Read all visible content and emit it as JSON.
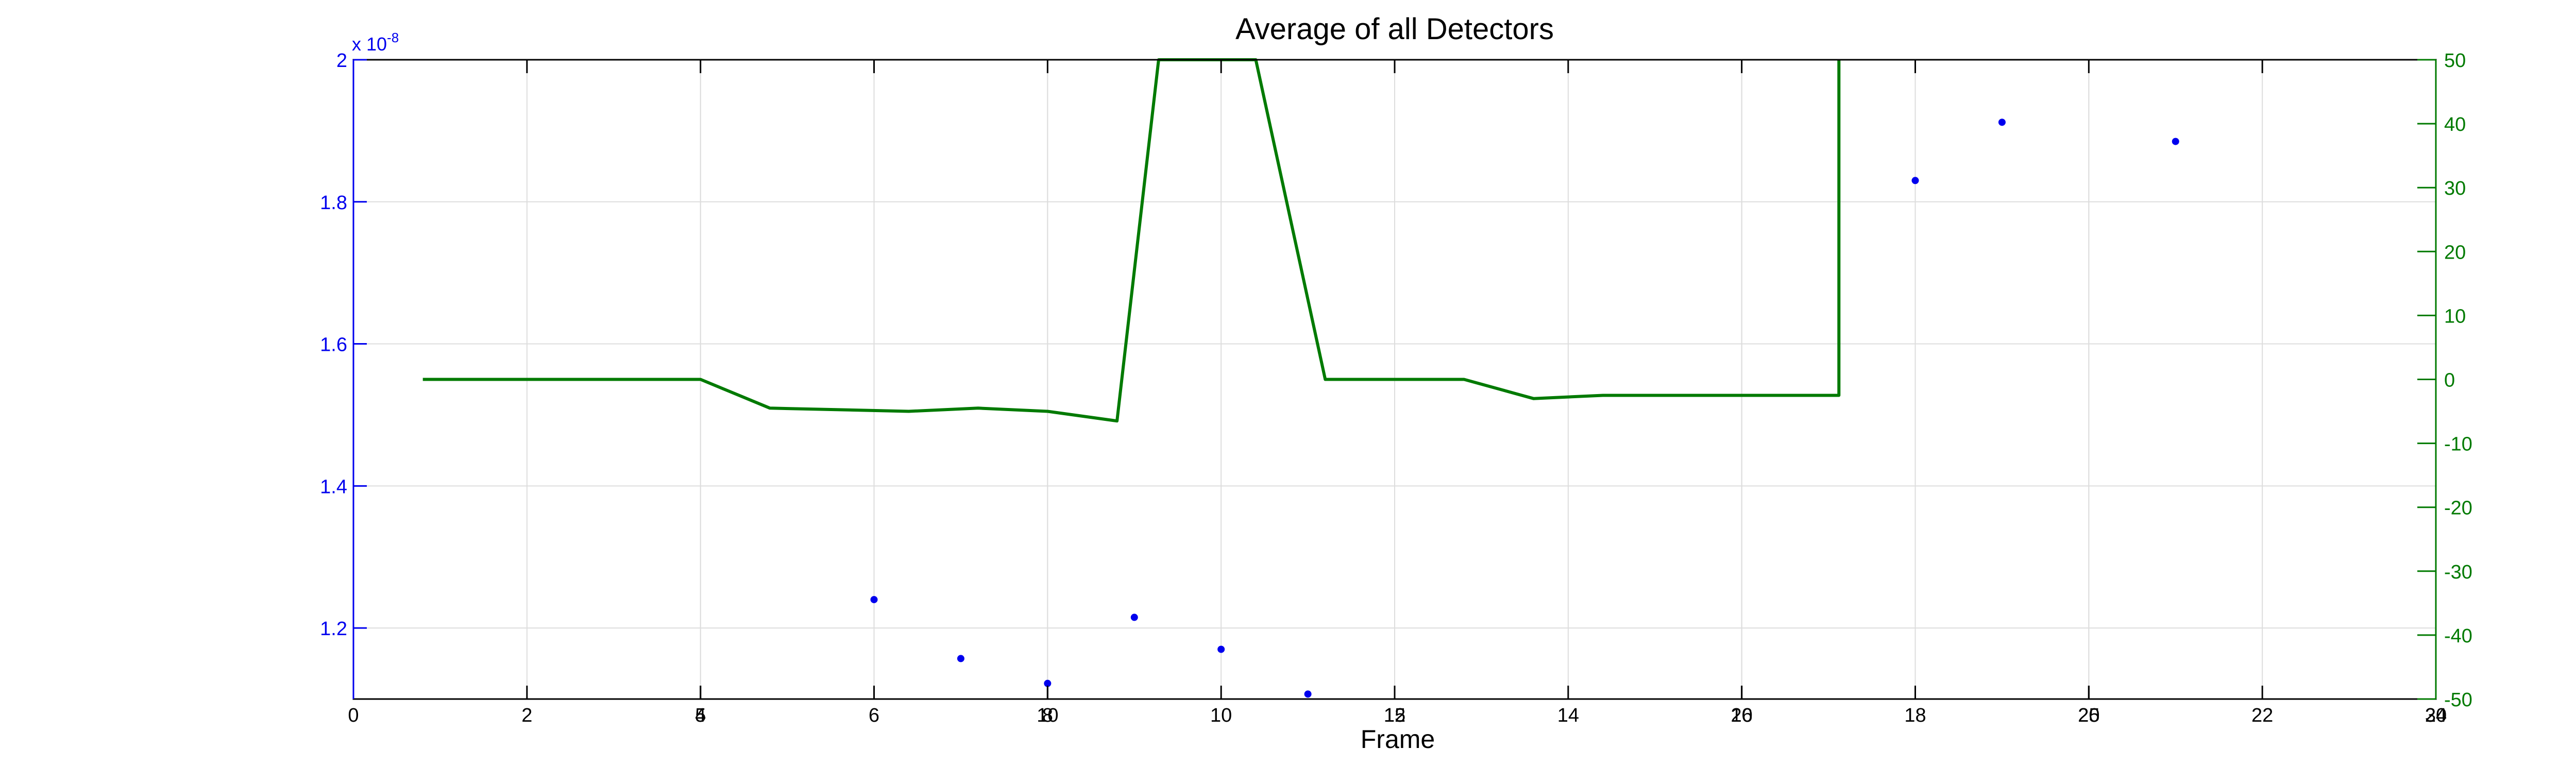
{
  "chart_data": {
    "type": "line",
    "title": "Average of all Detectors",
    "xlabel": "Frame",
    "ylabel": "",
    "grid": true,
    "colors": {
      "left_axis": "#0000ee",
      "right_axis": "#007a00",
      "scatter": "#0000ee",
      "line": "#007a00"
    },
    "left_axis": {
      "ylim": [
        1.1,
        2.0
      ],
      "ticks": [
        1.2,
        1.4,
        1.6,
        1.8,
        2.0
      ],
      "tick_labels": [
        "1.2",
        "1.4",
        "1.6",
        "1.8",
        "2"
      ],
      "exponent_label": "x 10",
      "exponent": "-8"
    },
    "right_axis": {
      "ylim": [
        -50,
        50
      ],
      "ticks": [
        -50,
        -40,
        -30,
        -20,
        -10,
        0,
        10,
        20,
        30,
        40,
        50
      ],
      "tick_labels": [
        "-50",
        "-40",
        "-30",
        "-20",
        "-10",
        "0",
        "10",
        "20",
        "30",
        "40",
        "50"
      ]
    },
    "x_axes": [
      {
        "name": "scatter",
        "xlim": [
          0,
          24
        ],
        "ticks": [
          0,
          2,
          4,
          6,
          8,
          10,
          12,
          14,
          16,
          18,
          20,
          22,
          24
        ],
        "tick_labels": [
          "0",
          "2",
          "4",
          "6",
          "8",
          "10",
          "12",
          "14",
          "16",
          "18",
          "20",
          "22",
          "24"
        ]
      },
      {
        "name": "line",
        "xlim": [
          0,
          30
        ],
        "ticks": [
          5,
          10,
          15,
          20,
          25,
          30
        ],
        "tick_labels": [
          "5",
          "10",
          "15",
          "20",
          "25",
          "30"
        ]
      }
    ],
    "series": [
      {
        "type": "scatter",
        "axis": "left",
        "x": [
          6,
          7,
          8,
          9,
          10,
          11,
          18,
          19,
          21
        ],
        "y": [
          1.24,
          1.157,
          1.122,
          1.215,
          1.17,
          1.107,
          1.83,
          1.912,
          1.885
        ]
      },
      {
        "type": "line",
        "axis": "right",
        "x": [
          1,
          5,
          6,
          8,
          9,
          10,
          11,
          11.6,
          13,
          14,
          14.5,
          16,
          17,
          18,
          20,
          21.4,
          21.4
        ],
        "y": [
          0,
          0,
          -4.5,
          -5,
          -4.5,
          -5,
          -6.5,
          50,
          50,
          0,
          0,
          0,
          -3,
          -2.5,
          -2.5,
          -2.5,
          50
        ]
      }
    ]
  }
}
